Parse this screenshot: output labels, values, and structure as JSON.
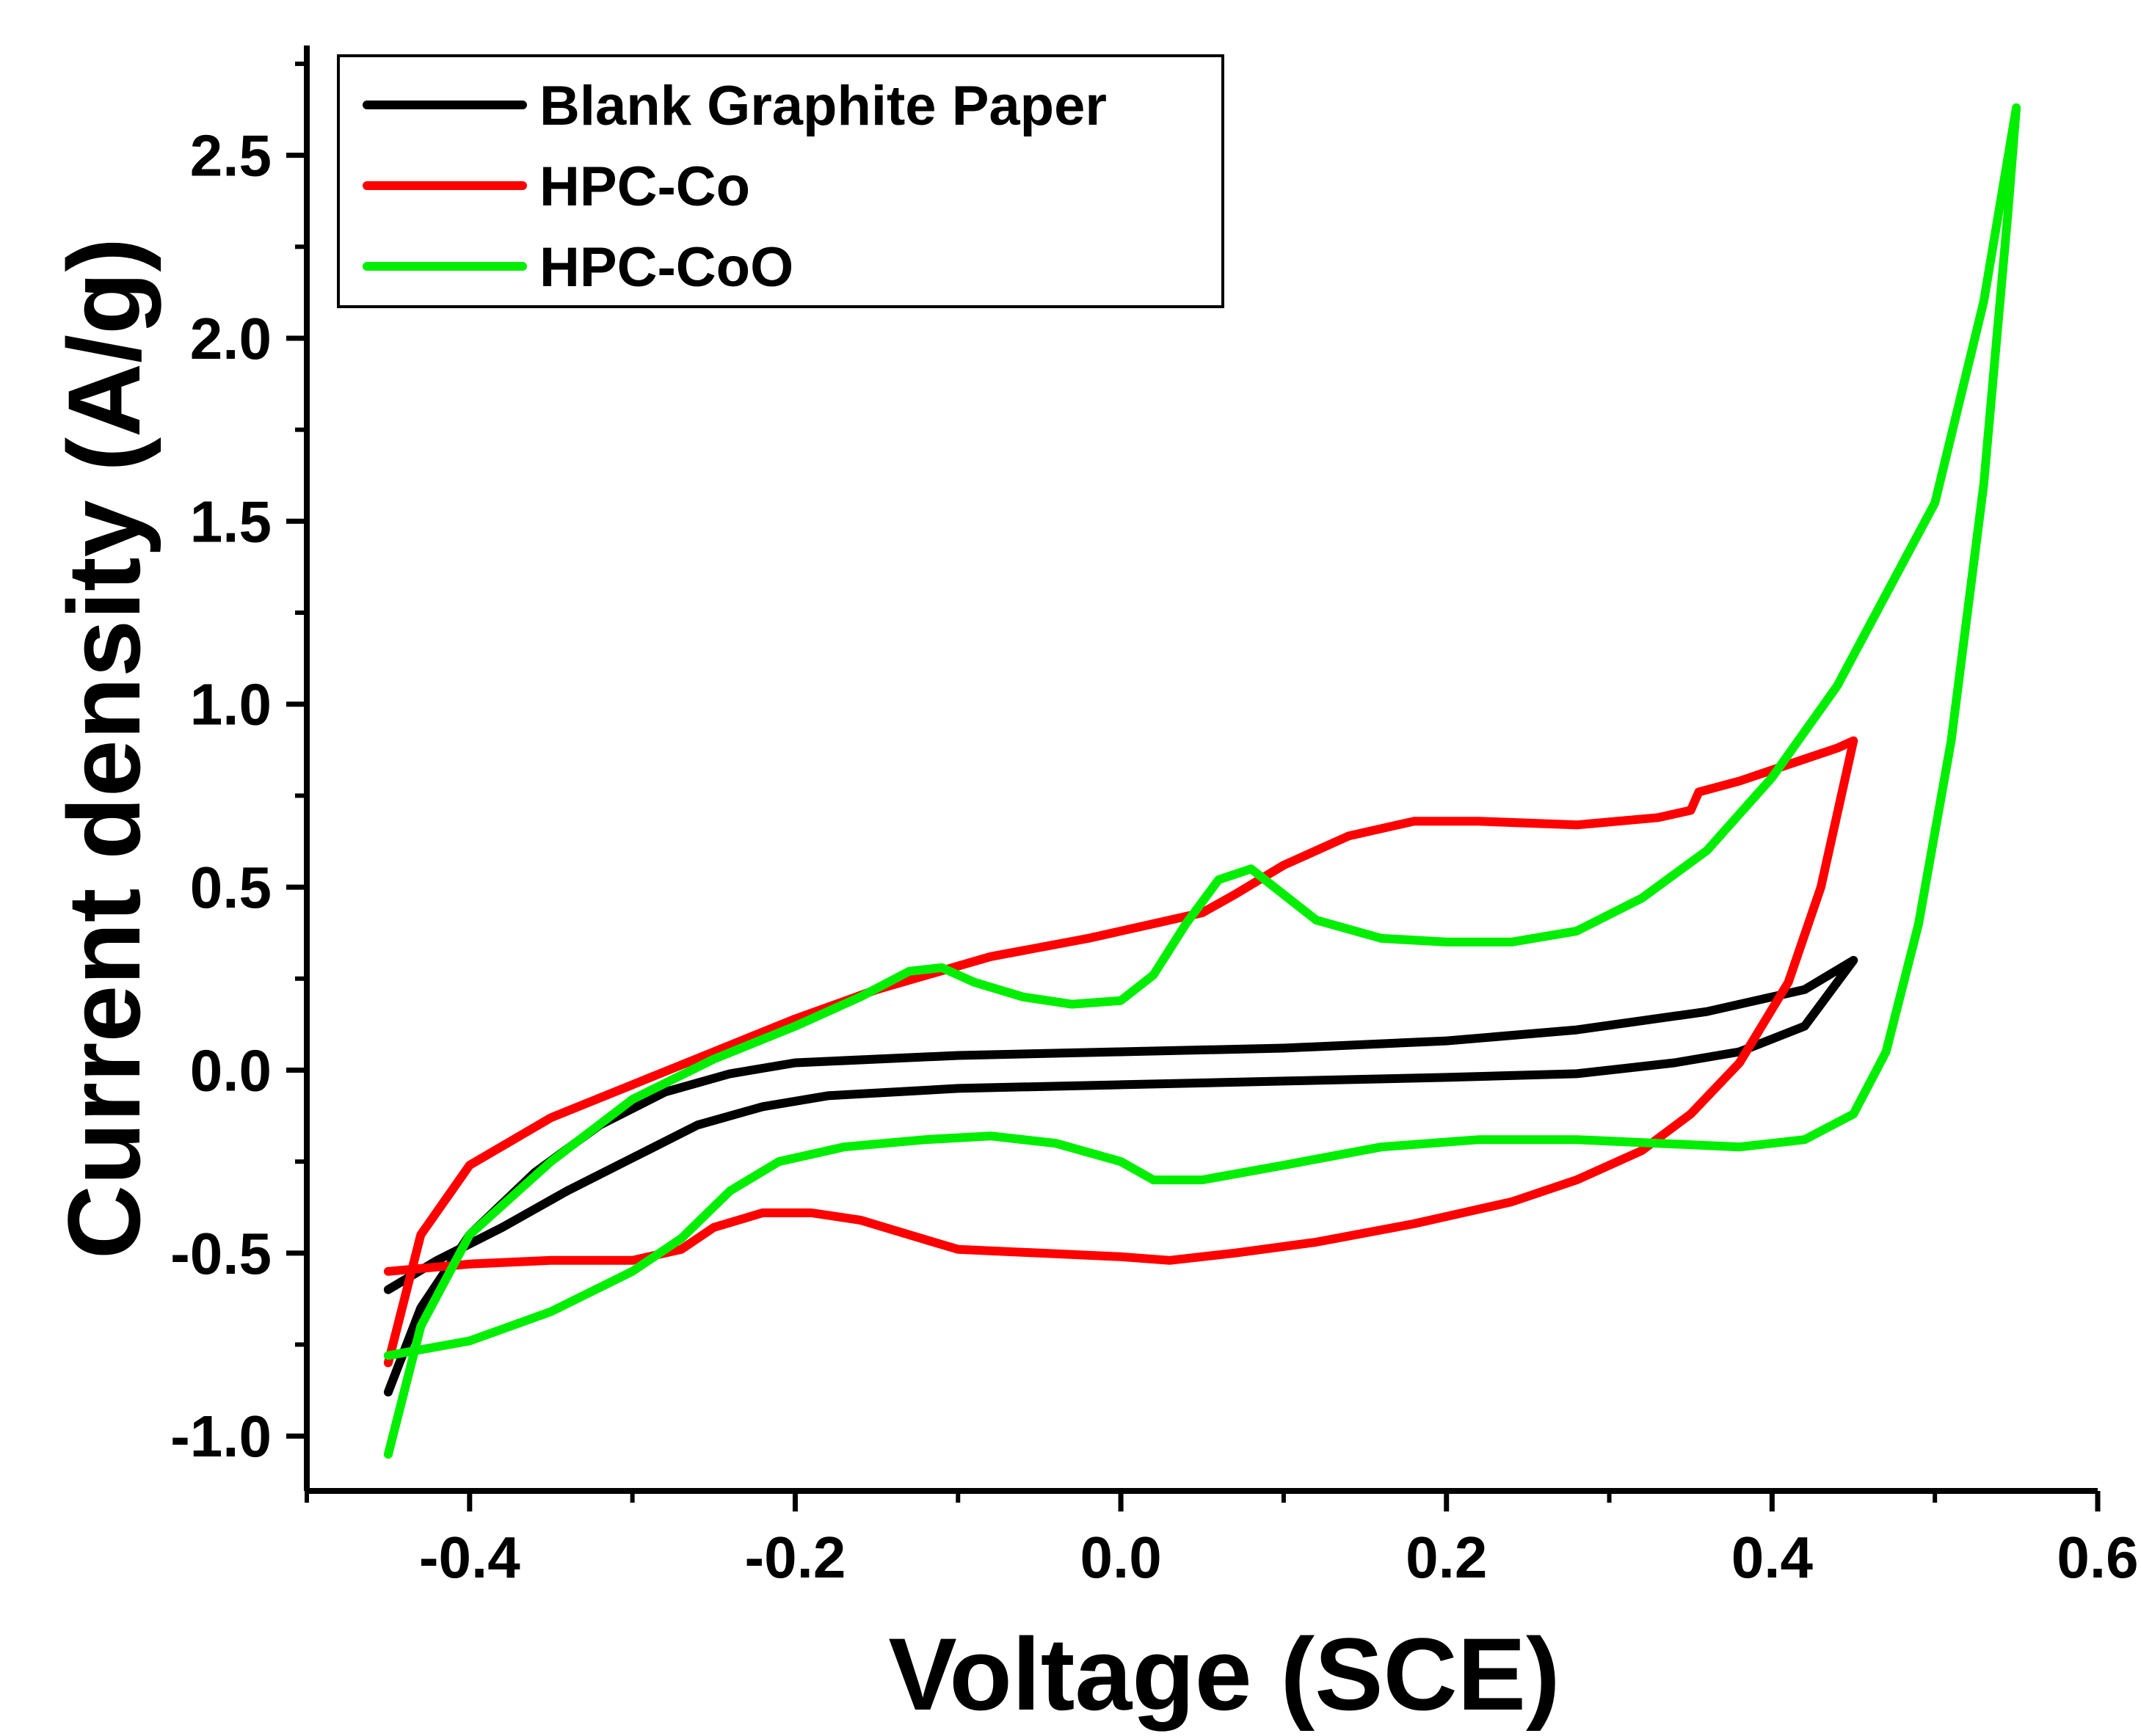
{
  "chart_data": {
    "type": "line",
    "title": "",
    "xlabel": "Voltage (SCE)",
    "ylabel": "Current density (A/g)",
    "xlim": [
      -0.5,
      0.6
    ],
    "ylim": [
      -1.15,
      2.8
    ],
    "x_ticks": [
      -0.4,
      -0.2,
      0.0,
      0.2,
      0.4,
      0.6
    ],
    "x_tick_labels": [
      "-0.4",
      "-0.2",
      "0.0",
      "0.2",
      "0.4",
      "0.6"
    ],
    "y_ticks": [
      -1.0,
      -0.5,
      0.0,
      0.5,
      1.0,
      1.5,
      2.0,
      2.5
    ],
    "y_tick_labels": [
      "-1.0",
      "-0.5",
      "0.0",
      "0.5",
      "1.0",
      "1.5",
      "2.0",
      "2.5"
    ],
    "grid": false,
    "legend_position": "top-left",
    "series": [
      {
        "name": "Blank Graphite Paper",
        "color": "#000000",
        "points": [
          [
            -0.45,
            -0.6
          ],
          [
            -0.42,
            -0.52
          ],
          [
            -0.38,
            -0.43
          ],
          [
            -0.34,
            -0.33
          ],
          [
            -0.3,
            -0.24
          ],
          [
            -0.26,
            -0.15
          ],
          [
            -0.22,
            -0.1
          ],
          [
            -0.18,
            -0.07
          ],
          [
            -0.1,
            -0.05
          ],
          [
            0.0,
            -0.04
          ],
          [
            0.1,
            -0.03
          ],
          [
            0.2,
            -0.02
          ],
          [
            0.28,
            -0.01
          ],
          [
            0.34,
            0.02
          ],
          [
            0.38,
            0.05
          ],
          [
            0.42,
            0.12
          ],
          [
            0.45,
            0.3
          ],
          [
            0.42,
            0.22
          ],
          [
            0.36,
            0.16
          ],
          [
            0.28,
            0.11
          ],
          [
            0.2,
            0.08
          ],
          [
            0.1,
            0.06
          ],
          [
            0.0,
            0.05
          ],
          [
            -0.1,
            0.04
          ],
          [
            -0.2,
            0.02
          ],
          [
            -0.24,
            -0.01
          ],
          [
            -0.28,
            -0.06
          ],
          [
            -0.32,
            -0.15
          ],
          [
            -0.36,
            -0.28
          ],
          [
            -0.4,
            -0.45
          ],
          [
            -0.43,
            -0.65
          ],
          [
            -0.45,
            -0.88
          ]
        ]
      },
      {
        "name": "HPC-Co",
        "color": "#ff0000",
        "points": [
          [
            -0.45,
            -0.55
          ],
          [
            -0.4,
            -0.53
          ],
          [
            -0.35,
            -0.52
          ],
          [
            -0.3,
            -0.52
          ],
          [
            -0.27,
            -0.49
          ],
          [
            -0.25,
            -0.43
          ],
          [
            -0.22,
            -0.39
          ],
          [
            -0.19,
            -0.39
          ],
          [
            -0.16,
            -0.41
          ],
          [
            -0.13,
            -0.45
          ],
          [
            -0.1,
            -0.49
          ],
          [
            -0.05,
            -0.5
          ],
          [
            0.0,
            -0.51
          ],
          [
            0.03,
            -0.52
          ],
          [
            0.07,
            -0.5
          ],
          [
            0.12,
            -0.47
          ],
          [
            0.18,
            -0.42
          ],
          [
            0.24,
            -0.36
          ],
          [
            0.28,
            -0.3
          ],
          [
            0.32,
            -0.22
          ],
          [
            0.35,
            -0.12
          ],
          [
            0.38,
            0.02
          ],
          [
            0.41,
            0.24
          ],
          [
            0.43,
            0.5
          ],
          [
            0.45,
            0.9
          ],
          [
            0.44,
            0.88
          ],
          [
            0.42,
            0.85
          ],
          [
            0.38,
            0.79
          ],
          [
            0.355,
            0.76
          ],
          [
            0.35,
            0.71
          ],
          [
            0.33,
            0.69
          ],
          [
            0.28,
            0.67
          ],
          [
            0.22,
            0.68
          ],
          [
            0.18,
            0.68
          ],
          [
            0.14,
            0.64
          ],
          [
            0.1,
            0.56
          ],
          [
            0.07,
            0.48
          ],
          [
            0.05,
            0.43
          ],
          [
            0.02,
            0.4
          ],
          [
            -0.02,
            0.36
          ],
          [
            -0.08,
            0.31
          ],
          [
            -0.15,
            0.22
          ],
          [
            -0.2,
            0.14
          ],
          [
            -0.25,
            0.05
          ],
          [
            -0.3,
            -0.04
          ],
          [
            -0.35,
            -0.13
          ],
          [
            -0.4,
            -0.26
          ],
          [
            -0.43,
            -0.45
          ],
          [
            -0.45,
            -0.8
          ]
        ]
      },
      {
        "name": "HPC-CoO",
        "color": "#00ee00",
        "points": [
          [
            -0.45,
            -0.78
          ],
          [
            -0.4,
            -0.74
          ],
          [
            -0.35,
            -0.66
          ],
          [
            -0.3,
            -0.55
          ],
          [
            -0.27,
            -0.46
          ],
          [
            -0.24,
            -0.33
          ],
          [
            -0.21,
            -0.25
          ],
          [
            -0.17,
            -0.21
          ],
          [
            -0.12,
            -0.19
          ],
          [
            -0.08,
            -0.18
          ],
          [
            -0.04,
            -0.2
          ],
          [
            0.0,
            -0.25
          ],
          [
            0.02,
            -0.3
          ],
          [
            0.05,
            -0.3
          ],
          [
            0.1,
            -0.26
          ],
          [
            0.16,
            -0.21
          ],
          [
            0.22,
            -0.19
          ],
          [
            0.28,
            -0.19
          ],
          [
            0.33,
            -0.2
          ],
          [
            0.38,
            -0.21
          ],
          [
            0.42,
            -0.19
          ],
          [
            0.45,
            -0.12
          ],
          [
            0.47,
            0.05
          ],
          [
            0.49,
            0.4
          ],
          [
            0.51,
            0.9
          ],
          [
            0.53,
            1.6
          ],
          [
            0.545,
            2.35
          ],
          [
            0.55,
            2.63
          ],
          [
            0.53,
            2.1
          ],
          [
            0.5,
            1.55
          ],
          [
            0.47,
            1.3
          ],
          [
            0.44,
            1.05
          ],
          [
            0.4,
            0.8
          ],
          [
            0.36,
            0.6
          ],
          [
            0.32,
            0.47
          ],
          [
            0.28,
            0.38
          ],
          [
            0.24,
            0.35
          ],
          [
            0.2,
            0.35
          ],
          [
            0.16,
            0.36
          ],
          [
            0.12,
            0.41
          ],
          [
            0.1,
            0.48
          ],
          [
            0.08,
            0.55
          ],
          [
            0.06,
            0.52
          ],
          [
            0.04,
            0.4
          ],
          [
            0.02,
            0.26
          ],
          [
            0.0,
            0.19
          ],
          [
            -0.03,
            0.18
          ],
          [
            -0.06,
            0.2
          ],
          [
            -0.09,
            0.24
          ],
          [
            -0.11,
            0.28
          ],
          [
            -0.13,
            0.27
          ],
          [
            -0.16,
            0.2
          ],
          [
            -0.2,
            0.12
          ],
          [
            -0.25,
            0.03
          ],
          [
            -0.3,
            -0.08
          ],
          [
            -0.35,
            -0.25
          ],
          [
            -0.4,
            -0.45
          ],
          [
            -0.43,
            -0.7
          ],
          [
            -0.45,
            -1.05
          ]
        ]
      }
    ]
  }
}
